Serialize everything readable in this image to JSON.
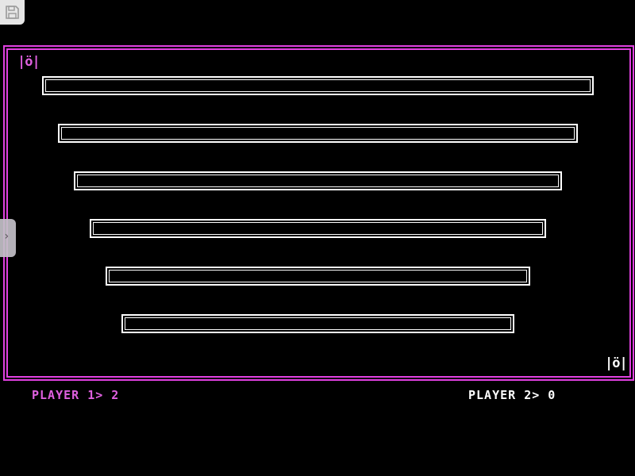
{
  "toolbar": {
    "save_icon": "floppy-disk-icon",
    "side_toggle_icon": "chevron-right-icon"
  },
  "colors": {
    "player1": "#e060e0",
    "player2": "#ffffff",
    "border": "#e040e0",
    "bars": "#ffffff"
  },
  "game": {
    "player1_sprite": "|ö|",
    "player2_sprite": "|ö|",
    "bar_count": 6
  },
  "scores": {
    "player1_label": "PLAYER 1> 2",
    "player2_label": "PLAYER 2> 0"
  }
}
